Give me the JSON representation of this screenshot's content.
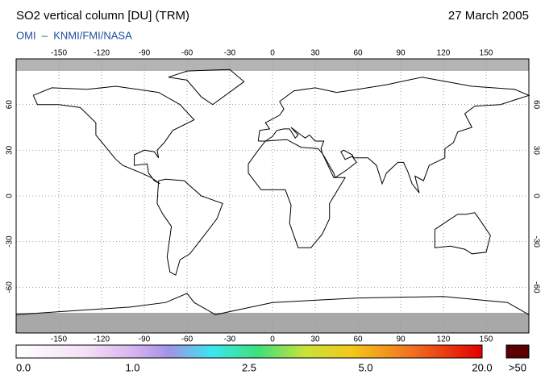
{
  "header": {
    "title": "SO2 vertical column [DU] (TRM)",
    "date": "27 March 2005",
    "subtitle": "OMI  –  KNMI/FMI/NASA"
  },
  "map": {
    "xlim": [
      -180,
      180
    ],
    "ylim": [
      -90,
      90
    ],
    "lon_ticks": [
      -150,
      -120,
      -90,
      -60,
      -30,
      0,
      30,
      60,
      90,
      120,
      150
    ],
    "lat_ticks": [
      60,
      30,
      0,
      -30,
      -60
    ]
  },
  "colorbar": {
    "labels": [
      "0.0",
      "1.0",
      "2.5",
      "5.0",
      "20.0"
    ],
    "overflow_label": ">50"
  }
}
